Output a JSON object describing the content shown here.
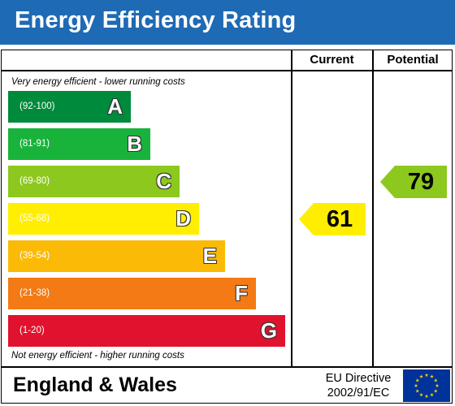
{
  "title": "Energy Efficiency Rating",
  "columns": {
    "current": "Current",
    "potential": "Potential"
  },
  "notes": {
    "top": "Very energy efficient - lower running costs",
    "bottom": "Not energy efficient - higher running costs"
  },
  "footer": {
    "region": "England & Wales",
    "directive_line1": "EU Directive",
    "directive_line2": "2002/91/EC"
  },
  "chart_data": {
    "type": "bar",
    "categories": [
      "A",
      "B",
      "C",
      "D",
      "E",
      "F",
      "G"
    ],
    "ranges": [
      "(92-100)",
      "(81-91)",
      "(69-80)",
      "(55-68)",
      "(39-54)",
      "(21-38)",
      "(1-20)"
    ],
    "min_values": [
      92,
      81,
      69,
      55,
      39,
      21,
      1
    ],
    "colors": [
      "#008a3b",
      "#19b33c",
      "#8dc81e",
      "#ffee00",
      "#fbba06",
      "#f37a14",
      "#e0122d"
    ],
    "current": {
      "value": 61,
      "band": "D",
      "color": "#ffee00"
    },
    "potential": {
      "value": 79,
      "band": "C",
      "color": "#8dc81e"
    }
  },
  "colors": {
    "header_bg": "#1f6ab4",
    "eu_flag_bg": "#003399",
    "eu_star": "#ffcc00"
  }
}
